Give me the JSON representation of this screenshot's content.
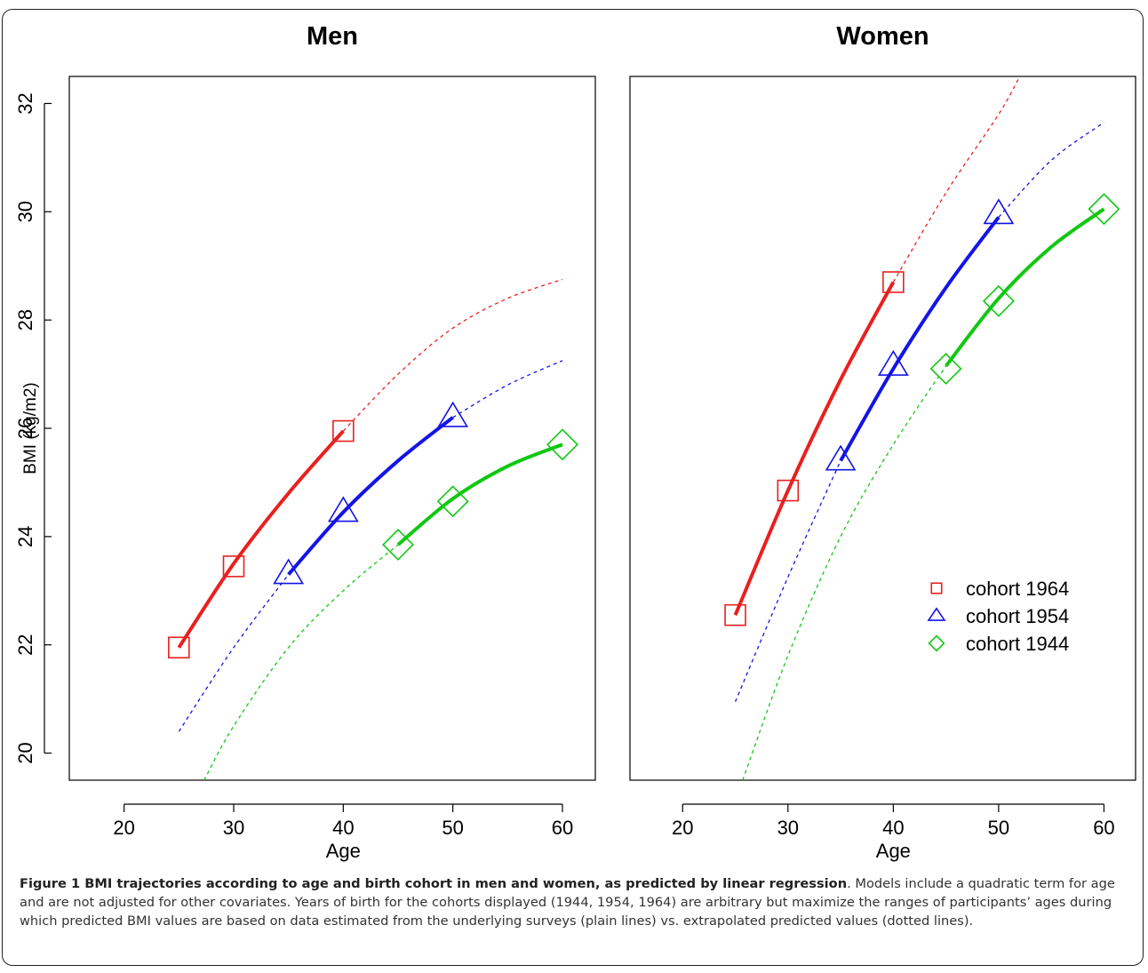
{
  "chart_data": [
    {
      "type": "line",
      "title": "Men",
      "xlabel": "Age",
      "ylabel": "BMI (kg/m2)",
      "xlim": [
        15,
        63
      ],
      "ylim": [
        19.5,
        32.5
      ],
      "xticks": [
        20,
        30,
        40,
        50,
        60
      ],
      "yticks": [
        20,
        22,
        24,
        26,
        28,
        30,
        32
      ],
      "grid": false,
      "series": [
        {
          "name": "cohort 1964",
          "color": "#e8201f",
          "marker": "square",
          "points": {
            "x": [
              25,
              30,
              40
            ],
            "y": [
              21.95,
              23.45,
              25.95
            ]
          },
          "solid": {
            "x": [
              25,
              30,
              35,
              40
            ],
            "y": [
              21.95,
              23.5,
              24.8,
              25.95
            ]
          },
          "dotted": {
            "x": [
              40,
              45,
              50,
              55,
              60
            ],
            "y": [
              25.95,
              27.0,
              27.85,
              28.4,
              28.75
            ]
          }
        },
        {
          "name": "cohort 1954",
          "color": "#1414e6",
          "marker": "triangle",
          "points": {
            "x": [
              35,
              40,
              50
            ],
            "y": [
              23.3,
              24.45,
              26.2
            ]
          },
          "solid": {
            "x": [
              35,
              40,
              45,
              50
            ],
            "y": [
              23.3,
              24.45,
              25.4,
              26.2
            ]
          },
          "dotted": {
            "x": [
              25,
              30,
              35
            ],
            "y": [
              20.4,
              21.95,
              23.3
            ]
          },
          "dotted2": {
            "x": [
              50,
              55,
              60
            ],
            "y": [
              26.2,
              26.8,
              27.25
            ]
          }
        },
        {
          "name": "cohort 1944",
          "color": "#10c810",
          "marker": "diamond",
          "points": {
            "x": [
              45,
              50,
              60
            ],
            "y": [
              23.85,
              24.65,
              25.7
            ]
          },
          "solid": {
            "x": [
              45,
              50,
              55,
              60
            ],
            "y": [
              23.85,
              24.7,
              25.3,
              25.7
            ]
          },
          "dotted": {
            "x": [
              27.3,
              30,
              35,
              40,
              45
            ],
            "y": [
              19.5,
              20.5,
              21.95,
              23.0,
              23.85
            ]
          }
        }
      ]
    },
    {
      "type": "line",
      "title": "Women",
      "xlabel": "Age",
      "ylabel": "",
      "xlim": [
        15,
        63
      ],
      "ylim": [
        19.5,
        32.5
      ],
      "xticks": [
        20,
        30,
        40,
        50,
        60
      ],
      "yticks": [],
      "grid": false,
      "legend": {
        "position": "right",
        "entries": [
          {
            "label": "cohort 1964",
            "color": "#e8201f",
            "marker": "square"
          },
          {
            "label": "cohort 1954",
            "color": "#1414e6",
            "marker": "triangle"
          },
          {
            "label": "cohort 1944",
            "color": "#10c810",
            "marker": "diamond"
          }
        ]
      },
      "series": [
        {
          "name": "cohort 1964",
          "color": "#e8201f",
          "marker": "square",
          "points": {
            "x": [
              25,
              30,
              40
            ],
            "y": [
              22.55,
              24.85,
              28.7
            ]
          },
          "solid": {
            "x": [
              25,
              30,
              35,
              40
            ],
            "y": [
              22.55,
              24.85,
              26.9,
              28.7
            ]
          },
          "dotted": {
            "x": [
              40,
              45,
              50,
              52
            ],
            "y": [
              28.7,
              30.35,
              31.8,
              32.5
            ]
          }
        },
        {
          "name": "cohort 1954",
          "color": "#1414e6",
          "marker": "triangle",
          "points": {
            "x": [
              35,
              40,
              50
            ],
            "y": [
              25.4,
              27.15,
              29.95
            ]
          },
          "solid": {
            "x": [
              35,
              40,
              45,
              50
            ],
            "y": [
              25.4,
              27.1,
              28.6,
              29.9
            ]
          },
          "dotted": {
            "x": [
              25,
              30,
              35
            ],
            "y": [
              20.95,
              23.25,
              25.4
            ]
          },
          "dotted2": {
            "x": [
              50,
              55,
              60
            ],
            "y": [
              29.9,
              30.95,
              31.65
            ]
          }
        },
        {
          "name": "cohort 1944",
          "color": "#10c810",
          "marker": "diamond",
          "points": {
            "x": [
              45,
              50,
              60
            ],
            "y": [
              27.1,
              28.35,
              30.05
            ]
          },
          "solid": {
            "x": [
              45,
              50,
              55,
              60
            ],
            "y": [
              27.15,
              28.4,
              29.35,
              30.05
            ]
          },
          "dotted": {
            "x": [
              25.7,
              30,
              35,
              40,
              45
            ],
            "y": [
              19.5,
              21.8,
              24.0,
              25.7,
              27.15
            ]
          }
        }
      ]
    }
  ],
  "caption": {
    "title": "Figure 1 BMI trajectories according to age and birth cohort in men and women, as predicted by linear regression",
    "text": ". Models include a quadratic term for age and are not adjusted for other covariates. Years of birth for the cohorts displayed (1944, 1954, 1964) are arbitrary but maximize the ranges of participants’ ages during which predicted BMI values are based on data estimated from the underlying surveys (plain lines) vs. extrapolated predicted values (dotted lines)."
  }
}
